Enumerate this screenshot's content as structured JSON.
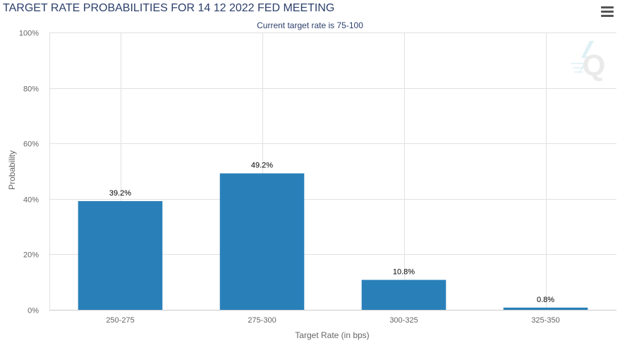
{
  "chart_data": {
    "type": "bar",
    "title": "TARGET RATE PROBABILITIES FOR 14 12 2022 FED MEETING",
    "subtitle": "Current target rate is 75-100",
    "xlabel": "Target Rate (in bps)",
    "ylabel": "Probability",
    "categories": [
      "250-275",
      "275-300",
      "300-325",
      "325-350"
    ],
    "values": [
      39.2,
      49.2,
      10.8,
      0.8
    ],
    "data_labels": [
      "39.2%",
      "49.2%",
      "10.8%",
      "0.8%"
    ],
    "ylim": [
      0,
      100
    ],
    "yticks": [
      0,
      20,
      40,
      60,
      80,
      100
    ],
    "ytick_labels": [
      "0%",
      "20%",
      "40%",
      "60%",
      "80%",
      "100%"
    ],
    "grid": true,
    "legend": "none",
    "bar_color": "#2980b9"
  },
  "watermark": {
    "letter": "Q"
  },
  "colors": {
    "title": "#2b3f6b",
    "grid": "#e1e1e1",
    "axis_text": "#666666",
    "label_text": "#000000"
  }
}
